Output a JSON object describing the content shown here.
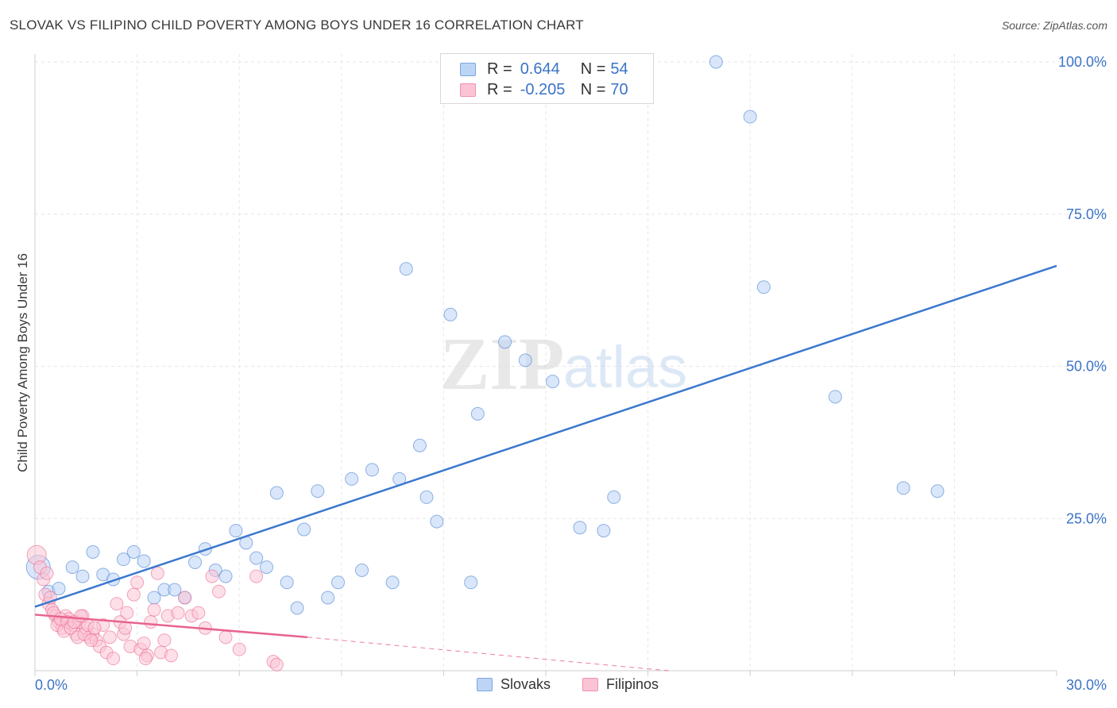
{
  "title": "SLOVAK VS FILIPINO CHILD POVERTY AMONG BOYS UNDER 16 CORRELATION CHART",
  "source": "Source: ZipAtlas.com",
  "watermark": {
    "zip": "ZIP",
    "atlas": "atlas"
  },
  "legend": {
    "rows": [
      {
        "r_label": "R =",
        "r_value": "0.644",
        "n_label": "N =",
        "n_value": "54",
        "fill": "#bcd4f5",
        "stroke": "#7aa6e0"
      },
      {
        "r_label": "R =",
        "r_value": "-0.205",
        "n_label": "N =",
        "n_value": "70",
        "fill": "#fbc4d5",
        "stroke": "#ef8fae"
      }
    ]
  },
  "bottom_legend": {
    "slovaks": "Slovaks",
    "filipinos": "Filipinos"
  },
  "chart_data": {
    "type": "scatter",
    "title": "SLOVAK VS FILIPINO CHILD POVERTY AMONG BOYS UNDER 16 CORRELATION CHART",
    "xlabel": "",
    "ylabel": "Child Poverty Among Boys Under 16",
    "xlim": [
      0,
      30
    ],
    "ylim": [
      0,
      100
    ],
    "x_tick_labels": [
      "0.0%",
      "30.0%"
    ],
    "y_ticks": [
      25,
      50,
      75,
      100
    ],
    "y_tick_labels": [
      "25.0%",
      "50.0%",
      "75.0%",
      "100.0%"
    ],
    "grid": true,
    "colors": {
      "slovaks": "#3a78d0",
      "filipinos": "#e8638d",
      "axis_label": "#3b73c6"
    },
    "series": [
      {
        "name": "Slovaks",
        "color": "#3a78d0",
        "fill": "#bcd4f5",
        "points": [
          [
            0.1,
            17.0
          ],
          [
            0.4,
            13.0
          ],
          [
            0.7,
            13.5
          ],
          [
            1.1,
            17.0
          ],
          [
            1.4,
            15.5
          ],
          [
            1.7,
            19.5
          ],
          [
            2.0,
            15.8
          ],
          [
            2.3,
            15.0
          ],
          [
            2.6,
            18.3
          ],
          [
            2.9,
            19.5
          ],
          [
            3.2,
            18.0
          ],
          [
            3.5,
            12.0
          ],
          [
            3.8,
            13.3
          ],
          [
            4.1,
            13.3
          ],
          [
            4.4,
            12.0
          ],
          [
            4.7,
            17.8
          ],
          [
            5.0,
            20.0
          ],
          [
            5.3,
            16.5
          ],
          [
            5.6,
            15.5
          ],
          [
            5.9,
            23.0
          ],
          [
            6.2,
            21.0
          ],
          [
            6.5,
            18.5
          ],
          [
            6.8,
            17.0
          ],
          [
            7.1,
            29.2
          ],
          [
            7.4,
            14.5
          ],
          [
            7.7,
            10.3
          ],
          [
            7.9,
            23.2
          ],
          [
            8.3,
            29.5
          ],
          [
            8.6,
            12.0
          ],
          [
            8.9,
            14.5
          ],
          [
            9.3,
            31.5
          ],
          [
            9.6,
            16.5
          ],
          [
            9.9,
            33.0
          ],
          [
            10.5,
            14.5
          ],
          [
            10.7,
            31.5
          ],
          [
            10.9,
            66.0
          ],
          [
            11.3,
            37.0
          ],
          [
            11.5,
            28.5
          ],
          [
            11.8,
            24.5
          ],
          [
            12.2,
            58.5
          ],
          [
            12.8,
            14.5
          ],
          [
            13.0,
            42.2
          ],
          [
            13.8,
            54.0
          ],
          [
            14.4,
            51.0
          ],
          [
            15.2,
            47.5
          ],
          [
            16.0,
            23.5
          ],
          [
            16.7,
            23.0
          ],
          [
            17.0,
            28.5
          ],
          [
            20.0,
            100.0
          ],
          [
            21.0,
            91.0
          ],
          [
            21.4,
            63.0
          ],
          [
            23.5,
            45.0
          ],
          [
            25.5,
            30.0
          ],
          [
            26.5,
            29.5
          ]
        ],
        "trend": {
          "x": [
            0,
            30
          ],
          "y": [
            10.5,
            66.5
          ]
        }
      },
      {
        "name": "Filipinos",
        "color": "#e8638d",
        "fill": "#fbc4d5",
        "points": [
          [
            0.05,
            19.0
          ],
          [
            0.15,
            17.0
          ],
          [
            0.25,
            15.0
          ],
          [
            0.3,
            12.5
          ],
          [
            0.4,
            11.0
          ],
          [
            0.5,
            10.0
          ],
          [
            0.6,
            9.0
          ],
          [
            0.7,
            8.0
          ],
          [
            0.8,
            7.0
          ],
          [
            0.9,
            9.0
          ],
          [
            1.0,
            8.5
          ],
          [
            1.1,
            7.5
          ],
          [
            1.2,
            6.0
          ],
          [
            1.3,
            8.0
          ],
          [
            1.4,
            9.0
          ],
          [
            1.5,
            7.0
          ],
          [
            1.6,
            5.5
          ],
          [
            1.7,
            6.0
          ],
          [
            1.8,
            5.0
          ],
          [
            1.9,
            4.0
          ],
          [
            2.0,
            7.5
          ],
          [
            2.1,
            3.0
          ],
          [
            2.2,
            5.5
          ],
          [
            2.3,
            2.0
          ],
          [
            2.4,
            11.0
          ],
          [
            2.5,
            8.0
          ],
          [
            2.6,
            6.0
          ],
          [
            2.7,
            9.5
          ],
          [
            2.8,
            4.0
          ],
          [
            2.9,
            12.5
          ],
          [
            3.0,
            14.5
          ],
          [
            3.1,
            3.5
          ],
          [
            3.2,
            4.5
          ],
          [
            3.3,
            2.5
          ],
          [
            3.4,
            8.0
          ],
          [
            3.5,
            10.0
          ],
          [
            3.6,
            16.0
          ],
          [
            3.7,
            3.0
          ],
          [
            3.8,
            5.0
          ],
          [
            3.9,
            9.0
          ],
          [
            4.0,
            2.5
          ],
          [
            4.2,
            9.5
          ],
          [
            4.4,
            12.0
          ],
          [
            4.6,
            9.0
          ],
          [
            4.8,
            9.5
          ],
          [
            5.0,
            7.0
          ],
          [
            5.2,
            15.5
          ],
          [
            5.4,
            13.0
          ],
          [
            5.6,
            5.5
          ],
          [
            6.0,
            3.5
          ],
          [
            6.5,
            15.5
          ],
          [
            7.0,
            1.5
          ],
          [
            7.1,
            1.0
          ],
          [
            0.35,
            16.0
          ],
          [
            0.45,
            12.0
          ],
          [
            0.55,
            9.5
          ],
          [
            0.65,
            7.5
          ],
          [
            0.75,
            8.5
          ],
          [
            0.85,
            6.5
          ],
          [
            0.95,
            8.0
          ],
          [
            1.05,
            7.0
          ],
          [
            1.15,
            8.0
          ],
          [
            1.25,
            5.5
          ],
          [
            1.35,
            9.0
          ],
          [
            1.45,
            6.0
          ],
          [
            1.55,
            7.5
          ],
          [
            1.65,
            5.0
          ],
          [
            1.75,
            7.0
          ],
          [
            2.65,
            7.0
          ],
          [
            3.25,
            2.0
          ]
        ],
        "trend": {
          "x": [
            0,
            8
          ],
          "y": [
            9.2,
            5.5
          ]
        },
        "trend_dashed": {
          "x": [
            8,
            18.6
          ],
          "y": [
            5.5,
            0.0
          ]
        }
      }
    ]
  }
}
